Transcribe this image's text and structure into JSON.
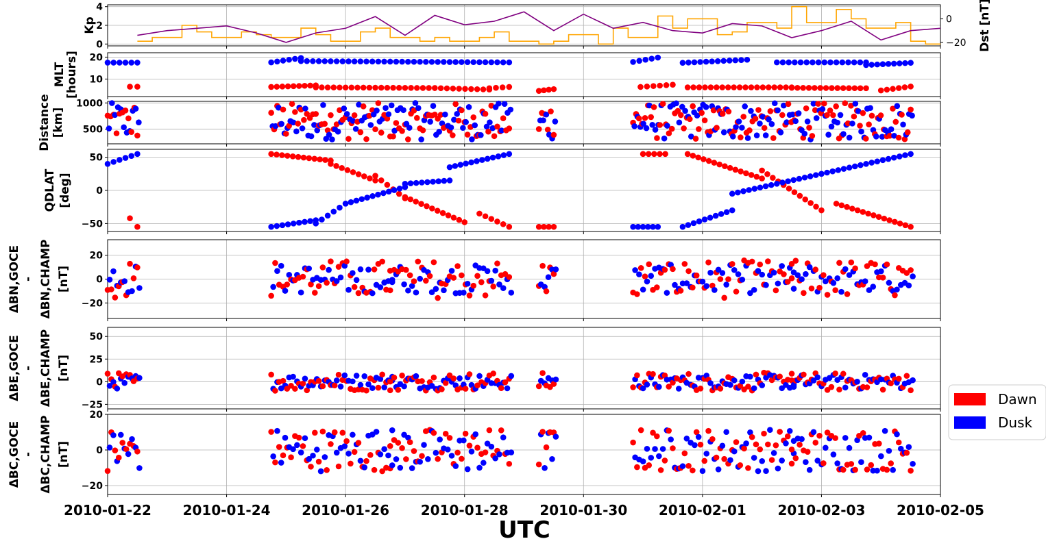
{
  "figure": {
    "xlabel": "UTC",
    "xticks": [
      "2010-01-22",
      "2010-01-24",
      "2010-01-26",
      "2010-01-28",
      "2010-01-30",
      "2010-02-01",
      "2010-02-03",
      "2010-02-05"
    ],
    "legend": {
      "placement": "right",
      "entries": [
        {
          "label": "Dawn",
          "color": "#ff0000"
        },
        {
          "label": "Dusk",
          "color": "#0000ff"
        }
      ]
    },
    "colors": {
      "dawn": "#ff0000",
      "dusk": "#0000ff",
      "kp": "#ffa500",
      "dst": "#800080",
      "grid": "#b0b0b0"
    }
  },
  "chart_data": [
    {
      "type": "line",
      "panel": "kp_dst",
      "ylabel": "Kp",
      "ylabel_right": "Dst [nT]",
      "ylim": [
        -0.2,
        4.2
      ],
      "yticks": [
        "0",
        "2",
        "4"
      ],
      "ylim_right": [
        -23,
        12
      ],
      "yticks_right": [
        "0",
        "−20"
      ],
      "xlim": [
        "2010-01-22",
        "2010-02-05"
      ],
      "series": [
        {
          "name": "Kp",
          "axis": "left",
          "x": [
            "2010-01-22T12:00",
            "2010-01-22T18:00",
            "2010-01-23T06:00",
            "2010-01-23T12:00",
            "2010-01-23T18:00",
            "2010-01-24T06:00",
            "2010-01-24T12:00",
            "2010-01-24T18:00",
            "2010-01-25T06:00",
            "2010-01-25T12:00",
            "2010-01-25T18:00",
            "2010-01-26T06:00",
            "2010-01-26T12:00",
            "2010-01-26T18:00",
            "2010-01-27T06:00",
            "2010-01-27T12:00",
            "2010-01-27T18:00",
            "2010-01-28T06:00",
            "2010-01-28T12:00",
            "2010-01-28T18:00",
            "2010-01-29T06:00",
            "2010-01-29T12:00",
            "2010-01-29T18:00",
            "2010-01-30T06:00",
            "2010-01-30T12:00",
            "2010-01-30T18:00",
            "2010-01-31T06:00",
            "2010-01-31T12:00",
            "2010-01-31T18:00",
            "2010-02-01T06:00",
            "2010-02-01T12:00",
            "2010-02-01T18:00",
            "2010-02-02T06:00",
            "2010-02-02T12:00",
            "2010-02-02T18:00",
            "2010-02-03T06:00",
            "2010-02-03T12:00",
            "2010-02-03T18:00",
            "2010-02-04T06:00",
            "2010-02-04T12:00",
            "2010-02-04T18:00",
            "2010-02-05T00:00"
          ],
          "values": [
            0.3,
            0.7,
            2.0,
            1.3,
            0.7,
            1.3,
            1.0,
            0.7,
            1.7,
            1.0,
            0.3,
            1.3,
            1.7,
            0.7,
            0.3,
            0.7,
            0.3,
            0.7,
            1.3,
            0.3,
            0.0,
            0.3,
            1.0,
            0.0,
            1.7,
            0.7,
            3.0,
            1.7,
            2.7,
            1.0,
            1.3,
            2.3,
            1.7,
            4.0,
            2.3,
            3.7,
            2.7,
            1.7,
            2.3,
            0.3,
            0.0,
            0.0
          ]
        },
        {
          "name": "Dst",
          "axis": "right",
          "x": [
            "2010-01-22T12:00",
            "2010-01-23T00:00",
            "2010-01-23T12:00",
            "2010-01-24T00:00",
            "2010-01-24T12:00",
            "2010-01-25T00:00",
            "2010-01-25T12:00",
            "2010-01-26T00:00",
            "2010-01-26T12:00",
            "2010-01-27T00:00",
            "2010-01-27T12:00",
            "2010-01-28T00:00",
            "2010-01-28T12:00",
            "2010-01-29T00:00",
            "2010-01-29T12:00",
            "2010-01-30T00:00",
            "2010-01-30T12:00",
            "2010-01-31T00:00",
            "2010-01-31T12:00",
            "2010-02-01T00:00",
            "2010-02-01T12:00",
            "2010-02-02T00:00",
            "2010-02-02T12:00",
            "2010-02-03T00:00",
            "2010-02-03T12:00",
            "2010-02-04T00:00",
            "2010-02-04T12:00",
            "2010-02-05T00:00"
          ],
          "values": [
            -14,
            -10,
            -8,
            -6,
            -12,
            -20,
            -12,
            -8,
            2,
            -14,
            3,
            -5,
            -2,
            6,
            -10,
            4,
            -8,
            -3,
            -10,
            -12,
            -4,
            -6,
            -16,
            -10,
            -2,
            -18,
            -10,
            -8
          ]
        }
      ]
    },
    {
      "type": "scatter",
      "panel": "mlt",
      "ylabel": "MLT [hours]",
      "ylim": [
        2,
        22
      ],
      "yticks": [
        "10",
        "20"
      ],
      "series": [
        {
          "name": "Dawn",
          "segments": [
            [
              "2010-01-22T09:00",
              "2010-01-22T12:00",
              6.5,
              6.5
            ],
            [
              "2010-01-24T18:00",
              "2010-01-25T12:00",
              6.4,
              7.1
            ],
            [
              "2010-01-25T12:00",
              "2010-01-27T12:00",
              6.2,
              5.9
            ],
            [
              "2010-01-27T12:00",
              "2010-01-28T10:00",
              5.9,
              5.2
            ],
            [
              "2010-01-28T10:00",
              "2010-01-28T18:00",
              5.8,
              6.4
            ],
            [
              "2010-01-29T06:00",
              "2010-01-29T12:00",
              4.6,
              5.4
            ],
            [
              "2010-01-30T23:00",
              "2010-01-31T12:00",
              6.4,
              7.4
            ],
            [
              "2010-01-31T18:00",
              "2010-02-02T12:00",
              6.2,
              6.2
            ],
            [
              "2010-02-02T12:00",
              "2010-02-03T18:00",
              6.0,
              5.8
            ],
            [
              "2010-02-04T00:00",
              "2010-02-04T12:00",
              4.8,
              6.6
            ]
          ]
        }
      ]
    },
    {
      "type": "scatter",
      "panel": "mlt_dusk",
      "ylabel": "",
      "series": [
        {
          "name": "Dusk",
          "segments": [
            [
              "2010-01-22T00:00",
              "2010-01-22T12:00",
              17.5,
              17.5
            ],
            [
              "2010-01-24T18:00",
              "2010-01-25T06:00",
              17.6,
              19.6
            ],
            [
              "2010-01-25T06:00",
              "2010-01-28T18:00",
              18.2,
              17.6
            ],
            [
              "2010-01-30T20:00",
              "2010-01-31T06:00",
              17.8,
              19.8
            ],
            [
              "2010-01-31T16:00",
              "2010-02-01T18:00",
              17.4,
              18.8
            ],
            [
              "2010-02-02T06:00",
              "2010-02-03T18:00",
              17.6,
              17.6
            ],
            [
              "2010-02-03T18:00",
              "2010-02-04T12:00",
              16.4,
              17.4
            ]
          ]
        }
      ]
    },
    {
      "type": "scatter",
      "panel": "distance",
      "ylabel": "Distance [km]",
      "ylim": [
        220,
        1030
      ],
      "yticks": [
        "500",
        "1000"
      ],
      "note": "two-satellite separation scattered between about 250 and 1000 km"
    },
    {
      "type": "scatter",
      "panel": "qdlat",
      "ylabel": "QDLAT [deg]",
      "ylim": [
        -62,
        62
      ],
      "yticks": [
        "50",
        "0",
        "−50"
      ],
      "series": [
        {
          "name": "Dawn",
          "segments": [
            [
              "2010-01-22T09:00",
              "2010-01-22T12:00",
              -42,
              -55
            ],
            [
              "2010-01-24T18:00",
              "2010-01-25T18:00",
              55,
              45
            ],
            [
              "2010-01-25T18:00",
              "2010-01-26T12:00",
              40,
              15
            ],
            [
              "2010-01-26T12:00",
              "2010-01-27T00:00",
              22,
              -12
            ],
            [
              "2010-01-27T00:00",
              "2010-01-28T00:00",
              -10,
              -48
            ],
            [
              "2010-01-28T06:00",
              "2010-01-28T18:00",
              -35,
              -55
            ],
            [
              "2010-01-29T06:00",
              "2010-01-29T12:00",
              -55,
              -55
            ],
            [
              "2010-01-31T00:00",
              "2010-01-31T09:00",
              55,
              55
            ],
            [
              "2010-01-31T18:00",
              "2010-02-02T00:00",
              55,
              18
            ],
            [
              "2010-02-02T00:00",
              "2010-02-03T00:00",
              30,
              -30
            ],
            [
              "2010-02-03T06:00",
              "2010-02-04T12:00",
              -20,
              -55
            ]
          ]
        },
        {
          "name": "Dusk",
          "segments": [
            [
              "2010-01-22T00:00",
              "2010-01-22T12:00",
              40,
              55
            ],
            [
              "2010-01-24T18:00",
              "2010-01-25T12:00",
              -55,
              -45
            ],
            [
              "2010-01-25T12:00",
              "2010-01-26T00:00",
              -50,
              -20
            ],
            [
              "2010-01-26T00:00",
              "2010-01-27T00:00",
              -20,
              5
            ],
            [
              "2010-01-27T00:00",
              "2010-01-27T18:00",
              10,
              15
            ],
            [
              "2010-01-27T18:00",
              "2010-01-28T18:00",
              35,
              55
            ],
            [
              "2010-01-30T20:00",
              "2010-01-31T06:00",
              -55,
              -55
            ],
            [
              "2010-01-31T16:00",
              "2010-02-01T12:00",
              -55,
              -30
            ],
            [
              "2010-02-01T12:00",
              "2010-02-03T00:00",
              -5,
              25
            ],
            [
              "2010-02-03T00:00",
              "2010-02-04T12:00",
              25,
              55
            ]
          ]
        }
      ]
    },
    {
      "type": "scatter",
      "panel": "dbn",
      "ylabel": "ΔB_N,GOCE - ΔB_N,CHAMP [nT]",
      "ylim": [
        -33,
        33
      ],
      "yticks": [
        "20",
        "0",
        "−20"
      ]
    },
    {
      "type": "scatter",
      "panel": "dbe",
      "ylabel": "ΔB_E,GOCE - ΔB_E,CHAMP [nT]",
      "ylim": [
        -30,
        60
      ],
      "yticks": [
        "50",
        "25",
        "0",
        "−25"
      ]
    },
    {
      "type": "scatter",
      "panel": "dbc",
      "ylabel": "ΔB_C,GOCE - ΔB_C,CHAMP [nT]",
      "ylim": [
        -25,
        20
      ],
      "yticks": [
        "20",
        "0",
        "−20"
      ]
    }
  ]
}
